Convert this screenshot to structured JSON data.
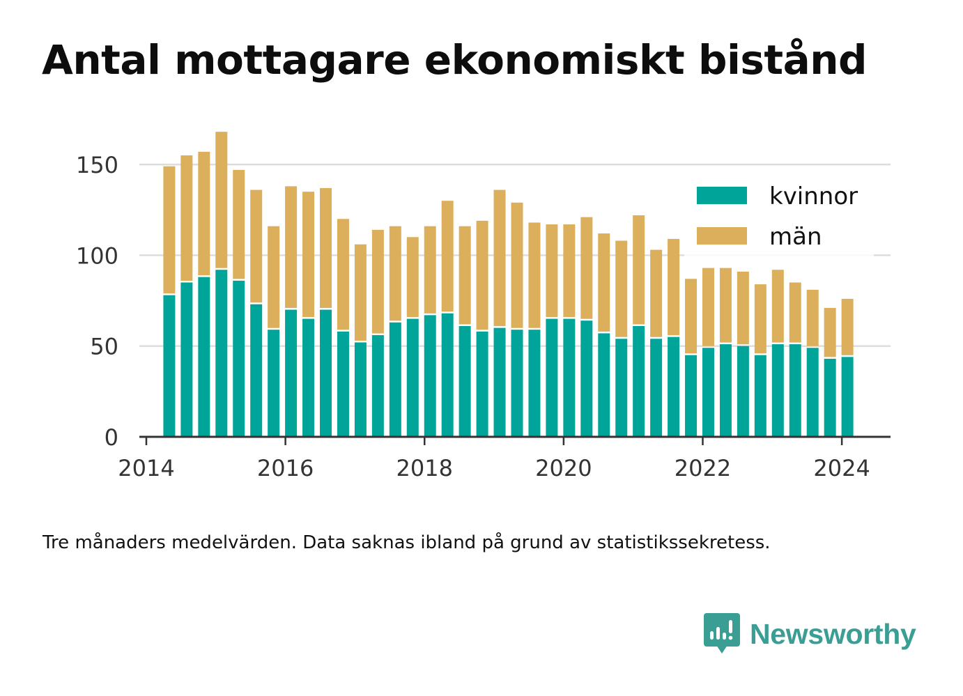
{
  "title": "Antal mottagare ekonomiskt bistånd",
  "footnote": "Tre månaders medelvärden. Data saknas ibland på grund av statistikssekretess.",
  "brand": {
    "name": "Newsworthy",
    "icon": "newsworthy-logo-icon",
    "color": "#3a9e94"
  },
  "chart_data": {
    "type": "bar",
    "stacked": true,
    "x": [
      2014.33,
      2014.58,
      2014.83,
      2015.08,
      2015.33,
      2015.58,
      2015.83,
      2016.08,
      2016.33,
      2016.58,
      2016.83,
      2017.08,
      2017.33,
      2017.58,
      2017.83,
      2018.08,
      2018.33,
      2018.58,
      2018.83,
      2019.08,
      2019.33,
      2019.58,
      2019.83,
      2020.08,
      2020.33,
      2020.58,
      2020.83,
      2021.08,
      2021.33,
      2021.58,
      2021.83,
      2022.08,
      2022.33,
      2022.58,
      2022.83,
      2023.08,
      2023.33,
      2023.58,
      2023.83,
      2024.08
    ],
    "series": [
      {
        "name": "kvinnor",
        "color": "#00a499",
        "values": [
          78,
          85,
          88,
          92,
          86,
          73,
          59,
          70,
          65,
          70,
          58,
          52,
          56,
          63,
          65,
          67,
          68,
          61,
          58,
          60,
          59,
          59,
          65,
          65,
          64,
          57,
          54,
          61,
          54,
          55,
          45,
          49,
          51,
          50,
          45,
          51,
          51,
          49,
          43,
          44
        ]
      },
      {
        "name": "män",
        "color": "#dbaf5b",
        "values": [
          71,
          70,
          69,
          76,
          61,
          63,
          57,
          68,
          70,
          67,
          62,
          54,
          58,
          53,
          45,
          49,
          62,
          55,
          61,
          76,
          70,
          59,
          52,
          52,
          57,
          55,
          54,
          61,
          49,
          54,
          42,
          44,
          42,
          41,
          39,
          41,
          34,
          32,
          28,
          32
        ]
      }
    ],
    "xlim": [
      2013.9,
      2024.7
    ],
    "ylim": [
      0,
      160
    ],
    "xticks": [
      "2014",
      "2016",
      "2018",
      "2020",
      "2022",
      "2024"
    ],
    "yticks": [
      "0",
      "50",
      "100",
      "150"
    ],
    "grid": true,
    "legend_position": "top-right"
  }
}
